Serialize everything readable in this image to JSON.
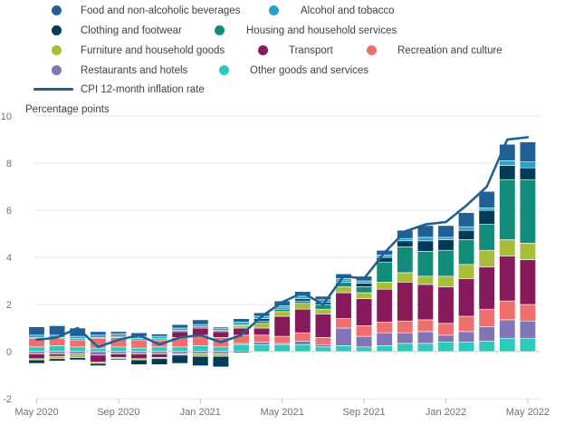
{
  "chart_data": {
    "type": "bar",
    "stacked": true,
    "ylabel": "Percentage points",
    "ylim": [
      -2,
      10
    ],
    "yticks": [
      -2,
      0,
      2,
      4,
      6,
      8,
      10
    ],
    "grid": true,
    "legend_position": "top",
    "months": [
      "May 2020",
      "Jun 2020",
      "Jul 2020",
      "Aug 2020",
      "Sep 2020",
      "Oct 2020",
      "Nov 2020",
      "Dec 2020",
      "Jan 2021",
      "Feb 2021",
      "Mar 2021",
      "Apr 2021",
      "May 2021",
      "Jun 2021",
      "Jul 2021",
      "Aug 2021",
      "Sep 2021",
      "Oct 2021",
      "Nov 2021",
      "Dec 2021",
      "Jan 2022",
      "Feb 2022",
      "Mar 2022",
      "Apr 2022",
      "May 2022"
    ],
    "x_tick_labels": [
      {
        "index": 0,
        "label": "May 2020"
      },
      {
        "index": 4,
        "label": "Sep 2020"
      },
      {
        "index": 8,
        "label": "Jan 2021"
      },
      {
        "index": 12,
        "label": "May 2021"
      },
      {
        "index": 16,
        "label": "Sep 2021"
      },
      {
        "index": 20,
        "label": "Jan 2022"
      },
      {
        "index": 24,
        "label": "May 2022"
      }
    ],
    "series": [
      {
        "name": "Other goods and services",
        "color": "#2ec9b8",
        "values": [
          0.2,
          0.25,
          0.2,
          0.15,
          0.2,
          0.15,
          0.2,
          0.2,
          0.25,
          0.2,
          0.3,
          0.3,
          0.3,
          0.3,
          0.2,
          0.25,
          0.2,
          0.25,
          0.35,
          0.35,
          0.4,
          0.4,
          0.45,
          0.55,
          0.55
        ]
      },
      {
        "name": "Restaurants and hotels",
        "color": "#8275b5",
        "values": [
          -0.1,
          -0.1,
          -0.1,
          -0.15,
          -0.1,
          -0.1,
          -0.1,
          -0.1,
          -0.1,
          -0.1,
          0.05,
          0.1,
          0.05,
          0.15,
          0.1,
          0.75,
          0.45,
          0.55,
          0.45,
          0.5,
          0.3,
          0.45,
          0.6,
          0.8,
          0.75
        ]
      },
      {
        "name": "Recreation and culture",
        "color": "#f06e6e",
        "values": [
          0.35,
          0.3,
          0.3,
          0.4,
          0.4,
          0.35,
          0.3,
          0.4,
          0.45,
          0.4,
          0.35,
          0.3,
          0.3,
          0.35,
          0.3,
          0.4,
          0.45,
          0.45,
          0.5,
          0.5,
          0.5,
          0.65,
          0.75,
          0.8,
          0.7
        ]
      },
      {
        "name": "Transport",
        "color": "#871a5b",
        "values": [
          -0.2,
          -0.1,
          -0.05,
          -0.3,
          -0.15,
          -0.2,
          -0.15,
          0.25,
          0.3,
          0.25,
          0.3,
          0.3,
          0.85,
          1.0,
          1.0,
          1.1,
          1.15,
          1.4,
          1.65,
          1.5,
          1.55,
          1.6,
          1.8,
          1.9,
          1.9
        ]
      },
      {
        "name": "Furniture and household goods",
        "color": "#a8bd3a",
        "values": [
          -0.05,
          -0.1,
          -0.1,
          -0.05,
          -0.05,
          -0.05,
          -0.05,
          -0.05,
          -0.1,
          -0.1,
          0.1,
          0.2,
          0.2,
          0.25,
          0.2,
          0.25,
          0.25,
          0.3,
          0.4,
          0.35,
          0.45,
          0.6,
          0.7,
          0.7,
          0.7
        ]
      },
      {
        "name": "Housing and household services",
        "color": "#118c7b",
        "values": [
          0.05,
          0.05,
          0.05,
          0.05,
          0.05,
          0.05,
          0.05,
          0.05,
          0.05,
          0.05,
          0.05,
          0.1,
          0.1,
          0.1,
          0.2,
          0.2,
          0.25,
          0.85,
          1.1,
          1.05,
          1.1,
          1.05,
          1.1,
          2.55,
          2.7
        ]
      },
      {
        "name": "Clothing and footwear",
        "color": "#003c57",
        "values": [
          -0.15,
          -0.1,
          -0.1,
          -0.1,
          -0.05,
          -0.2,
          -0.25,
          -0.35,
          -0.4,
          -0.45,
          -0.05,
          0.1,
          0.05,
          0.1,
          0.1,
          0.05,
          0.15,
          0.2,
          0.25,
          0.45,
          0.45,
          0.4,
          0.6,
          0.6,
          0.5
        ]
      },
      {
        "name": "Alcohol and tobacco",
        "color": "#27a0cc",
        "values": [
          0.1,
          0.1,
          0.1,
          0.1,
          0.1,
          0.1,
          0.1,
          0.1,
          0.1,
          0.1,
          0.1,
          0.1,
          0.1,
          0.1,
          0.1,
          0.1,
          0.1,
          0.1,
          0.1,
          0.15,
          0.1,
          0.15,
          0.1,
          0.2,
          0.25
        ]
      },
      {
        "name": "Food and non-alcoholic beverages",
        "color": "#206095",
        "values": [
          0.35,
          0.4,
          0.35,
          0.15,
          0.1,
          0.15,
          0.1,
          0.15,
          0.2,
          0.05,
          0.15,
          0.15,
          0.2,
          0.2,
          0.15,
          0.2,
          0.2,
          0.2,
          0.35,
          0.5,
          0.5,
          0.6,
          0.7,
          0.7,
          0.85
        ]
      }
    ],
    "line": {
      "name": "CPI 12-month inflation rate",
      "color": "#206095",
      "values": [
        0.5,
        0.6,
        1.0,
        0.2,
        0.5,
        0.7,
        0.3,
        0.6,
        0.7,
        0.4,
        0.7,
        1.5,
        2.1,
        2.5,
        2.0,
        3.2,
        3.1,
        4.2,
        5.1,
        5.4,
        5.5,
        6.2,
        7.0,
        9.0,
        9.1
      ]
    }
  },
  "legend": {
    "row1": [
      "Food and non-alcoholic beverages",
      "Alcohol and tobacco"
    ],
    "row2": [
      "Clothing and footwear",
      "Housing and household services"
    ],
    "row3": [
      "Furniture and household goods",
      "Transport",
      "Recreation and culture"
    ],
    "row4": [
      "Restaurants and hotels",
      "Other goods and services"
    ],
    "line": "CPI 12-month inflation rate"
  }
}
